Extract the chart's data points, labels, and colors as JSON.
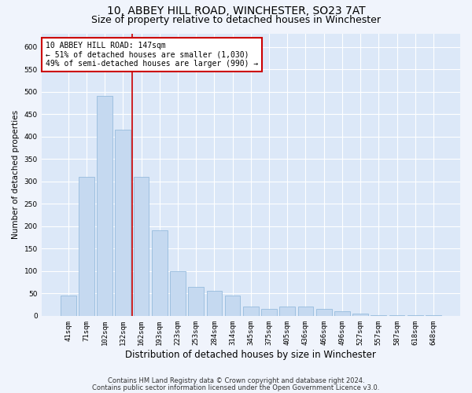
{
  "title1": "10, ABBEY HILL ROAD, WINCHESTER, SO23 7AT",
  "title2": "Size of property relative to detached houses in Winchester",
  "xlabel": "Distribution of detached houses by size in Winchester",
  "ylabel": "Number of detached properties",
  "categories": [
    "41sqm",
    "71sqm",
    "102sqm",
    "132sqm",
    "162sqm",
    "193sqm",
    "223sqm",
    "253sqm",
    "284sqm",
    "314sqm",
    "345sqm",
    "375sqm",
    "405sqm",
    "436sqm",
    "466sqm",
    "496sqm",
    "527sqm",
    "557sqm",
    "587sqm",
    "618sqm",
    "648sqm"
  ],
  "values": [
    45,
    310,
    490,
    415,
    310,
    190,
    100,
    65,
    55,
    45,
    20,
    15,
    20,
    20,
    15,
    10,
    5,
    1,
    2,
    2,
    2
  ],
  "bar_color": "#c5d9f0",
  "bar_edgecolor": "#8ab4d9",
  "vline_x": 3.5,
  "vline_color": "#cc0000",
  "annotation_text": "10 ABBEY HILL ROAD: 147sqm\n← 51% of detached houses are smaller (1,030)\n49% of semi-detached houses are larger (990) →",
  "annotation_box_color": "#ffffff",
  "annotation_box_edgecolor": "#cc0000",
  "ylim": [
    0,
    630
  ],
  "yticks": [
    0,
    50,
    100,
    150,
    200,
    250,
    300,
    350,
    400,
    450,
    500,
    550,
    600
  ],
  "footer1": "Contains HM Land Registry data © Crown copyright and database right 2024.",
  "footer2": "Contains public sector information licensed under the Open Government Licence v3.0.",
  "bg_color": "#f0f4fc",
  "plot_bg_color": "#dce8f8",
  "title1_fontsize": 10,
  "title2_fontsize": 9,
  "xlabel_fontsize": 8.5,
  "ylabel_fontsize": 7.5,
  "tick_fontsize": 6.5,
  "annotation_fontsize": 7,
  "footer_fontsize": 6
}
